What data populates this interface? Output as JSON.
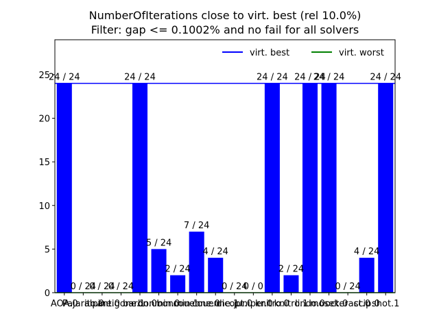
{
  "chart_data": {
    "type": "bar",
    "title_lines": [
      "NumberOfIterations close to virt. best (rel 10.0%)",
      "Filter: gap <= 0.1002% and no fail for all solvers"
    ],
    "xlabel": "",
    "ylabel": "",
    "ylim": [
      0,
      29
    ],
    "yticks": [
      0,
      5,
      10,
      15,
      20,
      25
    ],
    "categories": [
      "AOA.0",
      "Pajarito.0",
      "alpine.0",
      "antigone.1",
      "baron.0",
      "bonmin.0",
      "bonmin.1",
      "couenne.0",
      "couenne.1",
      "dicopt.0",
      "juniper.0",
      "knitro.0",
      "knitro.1",
      "lindo.0",
      "mosek.0",
      "octeract.0",
      "scip.0",
      "shot.1"
    ],
    "values": [
      24,
      0,
      0,
      0,
      24,
      5,
      2,
      7,
      4,
      0,
      0,
      24,
      2,
      24,
      24,
      0,
      4,
      24
    ],
    "bar_labels": [
      "24 / 24",
      "0 / 24",
      "0 / 24",
      "0 / 24",
      "24 / 24",
      "5 / 24",
      "2 / 24",
      "7 / 24",
      "4 / 24",
      "0 / 24",
      "0 / 0",
      "24 / 24",
      "2 / 24",
      "24 / 24",
      "24 / 24",
      "0 / 24",
      "4 / 24",
      "24 / 24"
    ],
    "virt_best": 24,
    "virt_worst": 0,
    "legend": {
      "position": "top-right",
      "entries": [
        {
          "label": "virt. best",
          "color": "#0000ff"
        },
        {
          "label": "virt. worst",
          "color": "#008000"
        }
      ]
    },
    "colors": {
      "bar": "#0000ff",
      "best_line": "#0000ff",
      "worst_line": "#008000"
    }
  }
}
